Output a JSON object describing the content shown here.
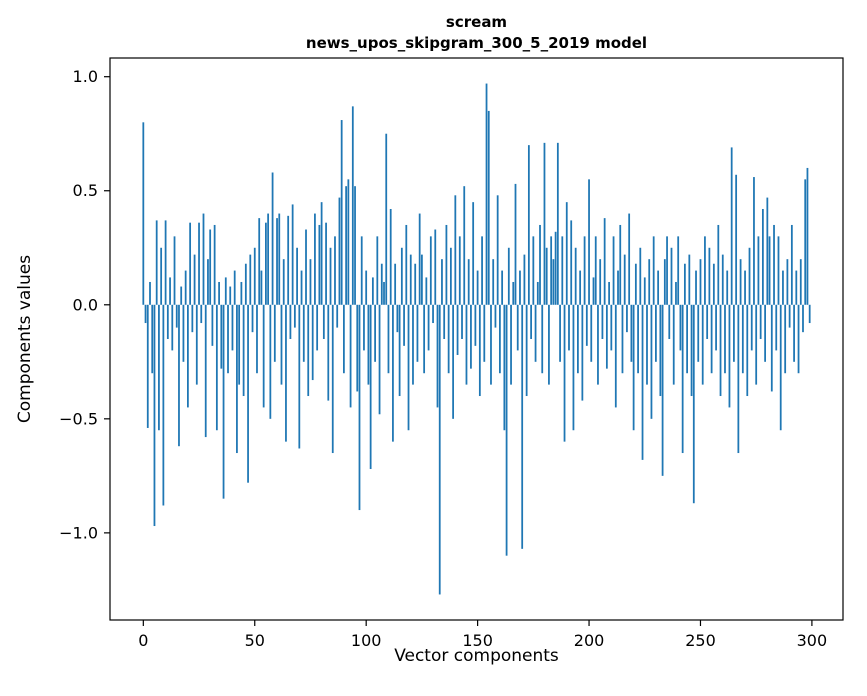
{
  "chart_data": {
    "type": "bar",
    "title": "scream",
    "subtitle": "news_upos_skipgram_300_5_2019 model",
    "xlabel": "Vector components",
    "ylabel": "Components values",
    "bar_color": "#1f77b4",
    "bar_width_data": 0.8,
    "xlim": [
      -14.95,
      313.95
    ],
    "ylim": [
      -1.382,
      1.082
    ],
    "xticks": [
      0,
      50,
      100,
      150,
      200,
      250,
      300
    ],
    "xtick_labels": [
      "0",
      "50",
      "100",
      "150",
      "200",
      "250",
      "300"
    ],
    "yticks": [
      1.0,
      0.5,
      0.0,
      -0.5,
      -1.0
    ],
    "ytick_labels": [
      "1.0",
      "0.5",
      "0.0",
      "−0.5",
      "−1.0"
    ],
    "grid": false,
    "legend": "none",
    "x": "index 0..299",
    "values": [
      0.8,
      -0.08,
      -0.54,
      0.1,
      -0.3,
      -0.97,
      0.37,
      -0.55,
      0.25,
      -0.88,
      0.37,
      -0.15,
      0.12,
      -0.2,
      0.3,
      -0.1,
      -0.62,
      0.08,
      -0.25,
      0.15,
      -0.45,
      0.36,
      -0.12,
      0.22,
      -0.35,
      0.36,
      -0.08,
      0.4,
      -0.58,
      0.2,
      0.33,
      -0.18,
      0.35,
      -0.55,
      0.1,
      -0.28,
      -0.85,
      0.12,
      -0.3,
      0.08,
      -0.2,
      0.15,
      -0.65,
      -0.35,
      0.1,
      -0.4,
      0.18,
      -0.78,
      0.22,
      -0.12,
      0.25,
      -0.3,
      0.38,
      0.15,
      -0.45,
      0.36,
      0.4,
      -0.5,
      0.58,
      -0.25,
      0.38,
      0.4,
      -0.35,
      0.2,
      -0.6,
      0.39,
      -0.15,
      0.44,
      -0.1,
      0.25,
      -0.63,
      0.15,
      -0.25,
      0.33,
      -0.4,
      0.2,
      -0.33,
      0.4,
      -0.2,
      0.35,
      0.45,
      -0.15,
      0.36,
      -0.42,
      0.25,
      -0.65,
      0.3,
      -0.1,
      0.47,
      0.81,
      -0.3,
      0.52,
      0.55,
      -0.45,
      0.87,
      0.52,
      -0.38,
      -0.9,
      0.3,
      -0.2,
      0.15,
      -0.35,
      -0.72,
      0.12,
      -0.25,
      0.3,
      -0.48,
      0.18,
      0.1,
      0.75,
      -0.3,
      0.42,
      -0.6,
      0.18,
      -0.12,
      -0.4,
      0.25,
      -0.18,
      0.35,
      -0.55,
      0.22,
      -0.35,
      0.18,
      -0.25,
      0.4,
      0.22,
      -0.3,
      0.12,
      -0.2,
      0.3,
      -0.08,
      0.33,
      -0.45,
      -1.27,
      0.2,
      -0.15,
      0.35,
      -0.3,
      0.25,
      -0.5,
      0.48,
      -0.22,
      0.3,
      -0.15,
      0.52,
      -0.35,
      0.2,
      -0.28,
      0.45,
      -0.18,
      0.15,
      -0.4,
      0.3,
      -0.25,
      0.97,
      0.85,
      -0.35,
      0.2,
      -0.1,
      0.48,
      -0.3,
      0.15,
      -0.55,
      -1.1,
      0.25,
      -0.35,
      0.1,
      0.53,
      -0.2,
      0.15,
      -1.07,
      0.22,
      -0.4,
      0.7,
      -0.15,
      0.3,
      -0.25,
      0.1,
      0.35,
      -0.3,
      0.71,
      0.25,
      -0.35,
      0.3,
      0.2,
      0.32,
      0.71,
      -0.25,
      0.3,
      -0.6,
      0.45,
      -0.2,
      0.37,
      -0.55,
      0.25,
      -0.3,
      0.15,
      -0.42,
      0.3,
      -0.18,
      0.55,
      -0.25,
      0.12,
      0.3,
      -0.35,
      0.2,
      -0.15,
      0.38,
      -0.28,
      0.1,
      -0.2,
      0.3,
      -0.45,
      0.15,
      0.35,
      -0.3,
      0.22,
      -0.12,
      0.4,
      -0.25,
      -0.55,
      0.18,
      -0.3,
      0.25,
      -0.68,
      0.12,
      -0.35,
      0.2,
      -0.5,
      0.3,
      -0.25,
      0.15,
      -0.4,
      -0.75,
      0.2,
      0.3,
      -0.15,
      0.25,
      -0.35,
      0.1,
      0.3,
      -0.2,
      -0.65,
      0.18,
      -0.3,
      0.22,
      -0.4,
      -0.87,
      0.15,
      -0.25,
      0.2,
      -0.35,
      0.3,
      -0.15,
      0.25,
      -0.3,
      0.18,
      -0.2,
      0.35,
      -0.4,
      0.22,
      -0.3,
      0.15,
      -0.45,
      0.69,
      -0.25,
      0.57,
      -0.65,
      0.2,
      -0.3,
      0.15,
      -0.4,
      0.25,
      -0.2,
      0.56,
      -0.35,
      0.3,
      -0.15,
      0.42,
      -0.25,
      0.47,
      0.3,
      -0.38,
      0.35,
      -0.2,
      0.3,
      -0.55,
      0.15,
      -0.3,
      0.2,
      -0.1,
      0.35,
      -0.25,
      0.15,
      -0.3,
      0.2,
      -0.12,
      0.55,
      0.6,
      -0.08
    ]
  }
}
